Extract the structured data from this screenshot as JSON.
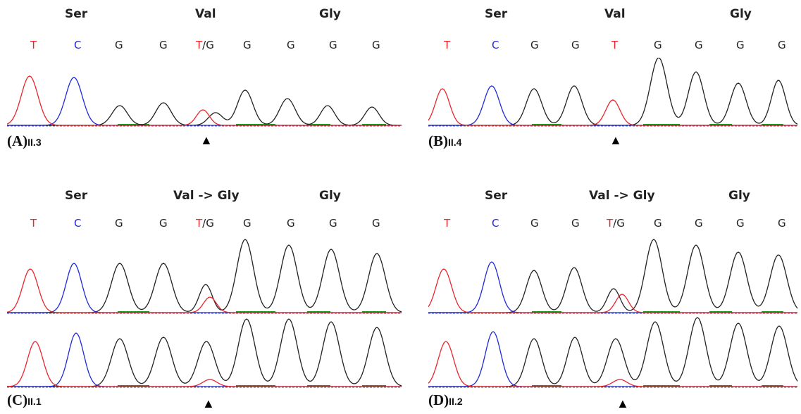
{
  "colors": {
    "T": "#e8262b",
    "C": "#1f2ad8",
    "G": "#222222",
    "baseline": "#555555",
    "minor": "#1a9a1a",
    "arrow": "#000000"
  },
  "panels": [
    {
      "letter": "(A)",
      "sample": "II.3",
      "codons": [
        "Ser",
        "Val",
        "Gly"
      ],
      "bases": [
        {
          "main": "T"
        },
        {
          "main": "C"
        },
        {
          "main": "G"
        },
        {
          "main": "G"
        },
        {
          "main": "T",
          "alt": "G"
        },
        {
          "main": "G"
        },
        {
          "main": "G"
        },
        {
          "main": "G"
        },
        {
          "main": "G"
        }
      ],
      "traces": 1,
      "arrow": "▲"
    },
    {
      "letter": "(B)",
      "sample": "II.4",
      "codons": [
        "Ser",
        "Val",
        "Gly"
      ],
      "bases": [
        {
          "main": "T"
        },
        {
          "main": "C"
        },
        {
          "main": "G"
        },
        {
          "main": "G"
        },
        {
          "main": "T"
        },
        {
          "main": "G"
        },
        {
          "main": "G"
        },
        {
          "main": "G"
        },
        {
          "main": "G"
        }
      ],
      "traces": 1,
      "arrow": "▲"
    },
    {
      "letter": "(C)",
      "sample": "II.1",
      "codons": [
        "Ser",
        "Val -> Gly",
        "Gly"
      ],
      "bases": [
        {
          "main": "T"
        },
        {
          "main": "C"
        },
        {
          "main": "G"
        },
        {
          "main": "G"
        },
        {
          "main": "T",
          "alt": "G"
        },
        {
          "main": "G"
        },
        {
          "main": "G"
        },
        {
          "main": "G"
        },
        {
          "main": "G"
        }
      ],
      "traces": 2,
      "arrow": "▲"
    },
    {
      "letter": "(D)",
      "sample": "II.2",
      "codons": [
        "Ser",
        "Val -> Gly",
        "Gly"
      ],
      "bases": [
        {
          "main": "T"
        },
        {
          "main": "C"
        },
        {
          "main": "G"
        },
        {
          "main": "G"
        },
        {
          "main": "T",
          "alt": "G"
        },
        {
          "main": "G"
        },
        {
          "main": "G"
        },
        {
          "main": "G"
        },
        {
          "main": "G"
        }
      ],
      "traces": 2,
      "arrow": "▲"
    }
  ]
}
